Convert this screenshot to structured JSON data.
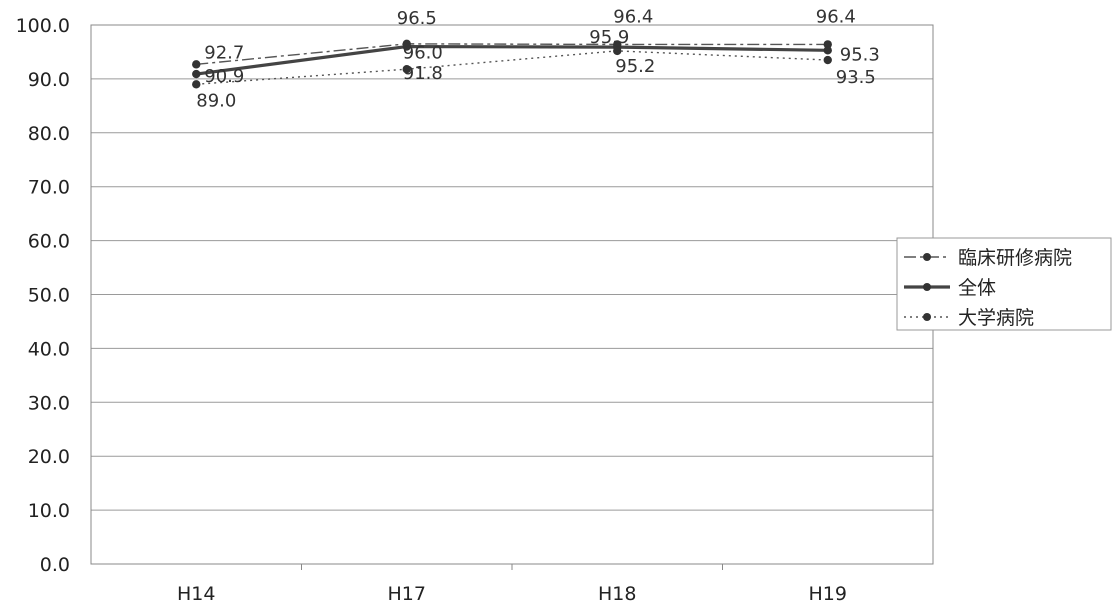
{
  "chart_data": {
    "type": "line",
    "categories": [
      "H14",
      "H17",
      "H18",
      "H19"
    ],
    "ylim": [
      0,
      100
    ],
    "yticks": [
      "0.0",
      "10.0",
      "20.0",
      "30.0",
      "40.0",
      "50.0",
      "60.0",
      "70.0",
      "80.0",
      "90.0",
      "100.0"
    ],
    "grid": true,
    "legend_position": "right",
    "series": [
      {
        "name": "臨床研修病院",
        "values": [
          92.7,
          96.5,
          96.4,
          96.4
        ],
        "labels": [
          "92.7",
          "96.5",
          "96.4",
          "96.4"
        ],
        "style": "dash-dot",
        "color": "#555555"
      },
      {
        "name": "全体",
        "values": [
          90.9,
          96.0,
          95.9,
          95.3
        ],
        "labels": [
          "90.9",
          "96.0",
          "95.9",
          "95.3"
        ],
        "style": "solid",
        "color": "#444444"
      },
      {
        "name": "大学病院",
        "values": [
          89.0,
          91.8,
          95.2,
          93.5
        ],
        "labels": [
          "89.0",
          "91.8",
          "95.2",
          "93.5"
        ],
        "style": "dotted",
        "color": "#555555"
      }
    ]
  }
}
